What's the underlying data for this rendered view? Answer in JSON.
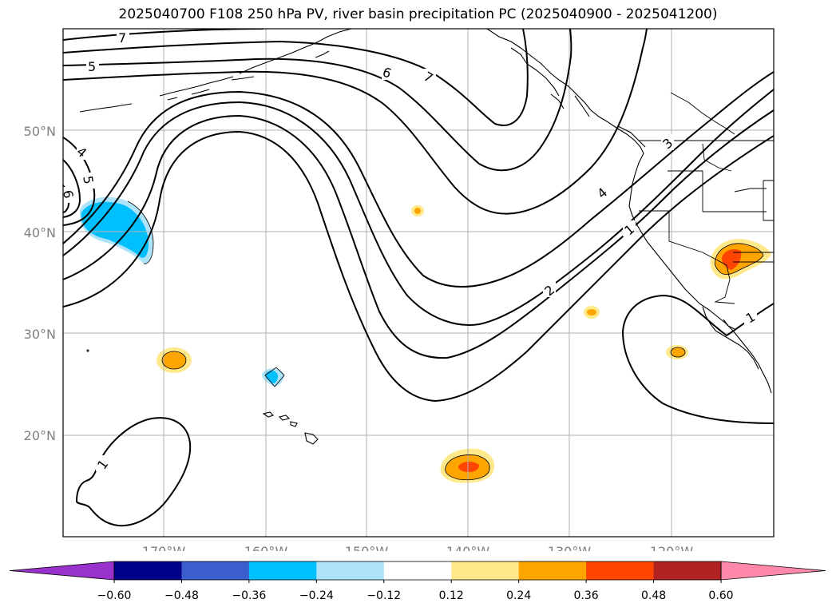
{
  "title": "2025040700 F108 250 hPa PV, river basin precipitation PC (2025040900 - 2025041200)",
  "map": {
    "lon_range": [
      -180,
      -110
    ],
    "lat_range": [
      10,
      60
    ],
    "lat_labels": [
      "20°N",
      "30°N",
      "40°N",
      "50°N"
    ],
    "lon_labels": [
      "170°W",
      "160°W",
      "150°W",
      "140°W",
      "130°W",
      "120°W"
    ],
    "contour_labels": [
      "7",
      "5",
      "6",
      "7",
      "4",
      "5",
      "6",
      "4",
      "2",
      "1",
      "3",
      "1",
      "1"
    ]
  },
  "colorbar": {
    "ticks": [
      "−0.60",
      "−0.48",
      "−0.36",
      "−0.24",
      "−0.12",
      "0.12",
      "0.24",
      "0.36",
      "0.48",
      "0.60"
    ],
    "colors": [
      "#9932cc",
      "#00008b",
      "#3a5fcd",
      "#00bfff",
      "#aee4fa",
      "#ffffff",
      "#ffe98a",
      "#ffa500",
      "#ff4500",
      "#b22222",
      "#ff89aa"
    ]
  }
}
